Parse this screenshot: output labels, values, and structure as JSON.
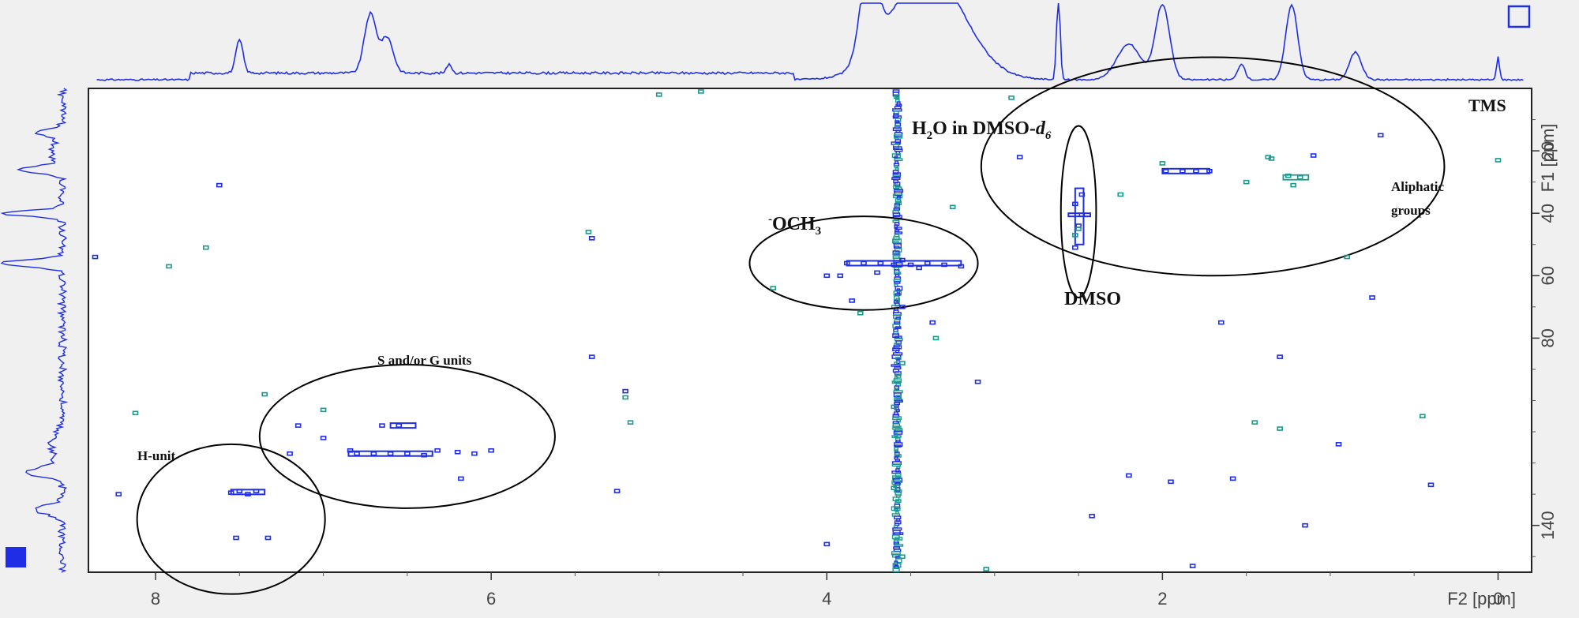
{
  "chart_data": {
    "type": "scatter",
    "title": "",
    "subtitle": "",
    "x_axis": {
      "label": "F2 [ppm]",
      "min": -0.2,
      "max": 8.4,
      "reversed": true,
      "ticks": [
        8,
        6,
        4,
        2,
        0
      ],
      "tick_labels": [
        "8",
        "6",
        "4",
        "2",
        "0"
      ]
    },
    "y_axis": {
      "label": "F1 [ppm]",
      "min": 0,
      "max": 155,
      "reversed": true,
      "position": "right",
      "ticks": [
        20,
        40,
        60,
        80,
        140
      ],
      "tick_labels": [
        "20",
        "40",
        "60",
        "80",
        "140"
      ]
    },
    "grid": false,
    "colors": {
      "positive": "#1f2ee6",
      "negative": "#169b8c",
      "projection": "#1f2ee6",
      "ellipse": "#000000"
    },
    "annotations": [
      {
        "id": "tms",
        "text": "TMS"
      },
      {
        "id": "water",
        "text": "H",
        "sub": "2",
        "rest": "O in DMSO-",
        "italic": "d",
        "italic_sub": "6"
      },
      {
        "id": "och3",
        "sup": "-",
        "text": "OCH",
        "sub": "3"
      },
      {
        "id": "dmso",
        "text": "DMSO"
      },
      {
        "id": "aliphatic",
        "text": "Aliphatic groups",
        "lines": [
          "Aliphatic",
          "groups"
        ]
      },
      {
        "id": "sg",
        "text": "S and/or G units"
      },
      {
        "id": "h",
        "text": "H-unit"
      }
    ],
    "regions": [
      {
        "label": "H-unit",
        "cx": 7.55,
        "cy": 138,
        "rx": 0.56,
        "ry": 24
      },
      {
        "label": "S and/or G units",
        "cx": 6.5,
        "cy": 111.5,
        "rx": 0.88,
        "ry": 23
      },
      {
        "label": "-OCH3",
        "cx": 3.78,
        "cy": 56,
        "rx": 0.68,
        "ry": 15
      },
      {
        "label": "DMSO",
        "cx": 2.5,
        "cy": 39.5,
        "rx": 0.105,
        "ry": 27.5
      },
      {
        "label": "Aliphatic groups",
        "cx": 1.7,
        "cy": 25,
        "rx": 1.38,
        "ry": 35
      }
    ],
    "series": [
      {
        "name": "positive",
        "points": [
          [
            7.5,
            129
          ],
          [
            7.4,
            129
          ],
          [
            7.55,
            129.5
          ],
          [
            7.45,
            130
          ],
          [
            7.52,
            144
          ],
          [
            7.33,
            144
          ],
          [
            6.65,
            108
          ],
          [
            6.55,
            108
          ],
          [
            6.8,
            117
          ],
          [
            6.7,
            117
          ],
          [
            6.6,
            117
          ],
          [
            6.5,
            117
          ],
          [
            6.4,
            117.5
          ],
          [
            6.2,
            116.5
          ],
          [
            6.1,
            117
          ],
          [
            6.0,
            116
          ],
          [
            6.84,
            116
          ],
          [
            3.88,
            56
          ],
          [
            3.78,
            56
          ],
          [
            3.68,
            56
          ],
          [
            3.6,
            56.5
          ],
          [
            3.5,
            56.5
          ],
          [
            3.4,
            56
          ],
          [
            3.3,
            56.5
          ],
          [
            3.2,
            57
          ],
          [
            3.55,
            55
          ],
          [
            3.45,
            57.5
          ],
          [
            3.7,
            59
          ],
          [
            3.92,
            60
          ],
          [
            2.52,
            37
          ],
          [
            2.48,
            40.5
          ],
          [
            2.5,
            44
          ],
          [
            2.52,
            51
          ],
          [
            2.48,
            34
          ],
          [
            1.98,
            26.5
          ],
          [
            1.88,
            26.5
          ],
          [
            1.8,
            26.5
          ],
          [
            1.72,
            26.5
          ],
          [
            1.1,
            21.5
          ],
          [
            7.62,
            31
          ],
          [
            8.36,
            54
          ],
          [
            4.0,
            60
          ],
          [
            3.85,
            68
          ],
          [
            5.4,
            86
          ],
          [
            5.2,
            97
          ],
          [
            7.15,
            108
          ],
          [
            7.2,
            117
          ],
          [
            7.0,
            112
          ],
          [
            6.32,
            116
          ],
          [
            8.22,
            130
          ],
          [
            6.18,
            125
          ],
          [
            5.25,
            129
          ],
          [
            4.0,
            146
          ],
          [
            3.55,
            70
          ],
          [
            3.37,
            75
          ],
          [
            3.1,
            94
          ],
          [
            2.85,
            22
          ],
          [
            0.7,
            15
          ],
          [
            0.75,
            67
          ],
          [
            1.65,
            75
          ],
          [
            1.3,
            86
          ],
          [
            0.95,
            114
          ],
          [
            2.2,
            124
          ],
          [
            1.95,
            126
          ],
          [
            1.58,
            125
          ],
          [
            0.4,
            127
          ],
          [
            1.15,
            140
          ],
          [
            1.82,
            153
          ],
          [
            2.42,
            137
          ],
          [
            5.4,
            48
          ]
        ]
      },
      {
        "name": "negative",
        "points": [
          [
            1.37,
            22
          ],
          [
            1.25,
            28
          ],
          [
            1.18,
            28.5
          ],
          [
            1.22,
            31
          ],
          [
            1.35,
            22.5
          ],
          [
            1.5,
            30
          ],
          [
            2.5,
            45
          ],
          [
            2.52,
            47
          ],
          [
            7.7,
            51
          ],
          [
            7.92,
            57
          ],
          [
            7.35,
            98
          ],
          [
            8.12,
            104
          ],
          [
            7.0,
            103
          ],
          [
            5.2,
            99
          ],
          [
            5.17,
            107
          ],
          [
            5.42,
            46
          ],
          [
            4.32,
            64
          ],
          [
            3.8,
            72
          ],
          [
            3.55,
            88
          ],
          [
            3.35,
            80
          ],
          [
            3.6,
            102
          ],
          [
            3.6,
            128
          ],
          [
            4.75,
            1
          ],
          [
            5.0,
            2
          ],
          [
            2.9,
            3
          ],
          [
            3.25,
            38
          ],
          [
            2.0,
            24
          ],
          [
            0.45,
            105
          ],
          [
            0.0,
            23
          ],
          [
            2.25,
            34
          ],
          [
            0.9,
            54
          ],
          [
            1.45,
            107
          ],
          [
            1.3,
            109
          ],
          [
            3.05,
            154
          ],
          [
            3.55,
            150
          ]
        ]
      },
      {
        "name": "water_band_F2_3.58ppm",
        "x": 3.58,
        "y_from": 0,
        "y_to": 155
      }
    ]
  }
}
